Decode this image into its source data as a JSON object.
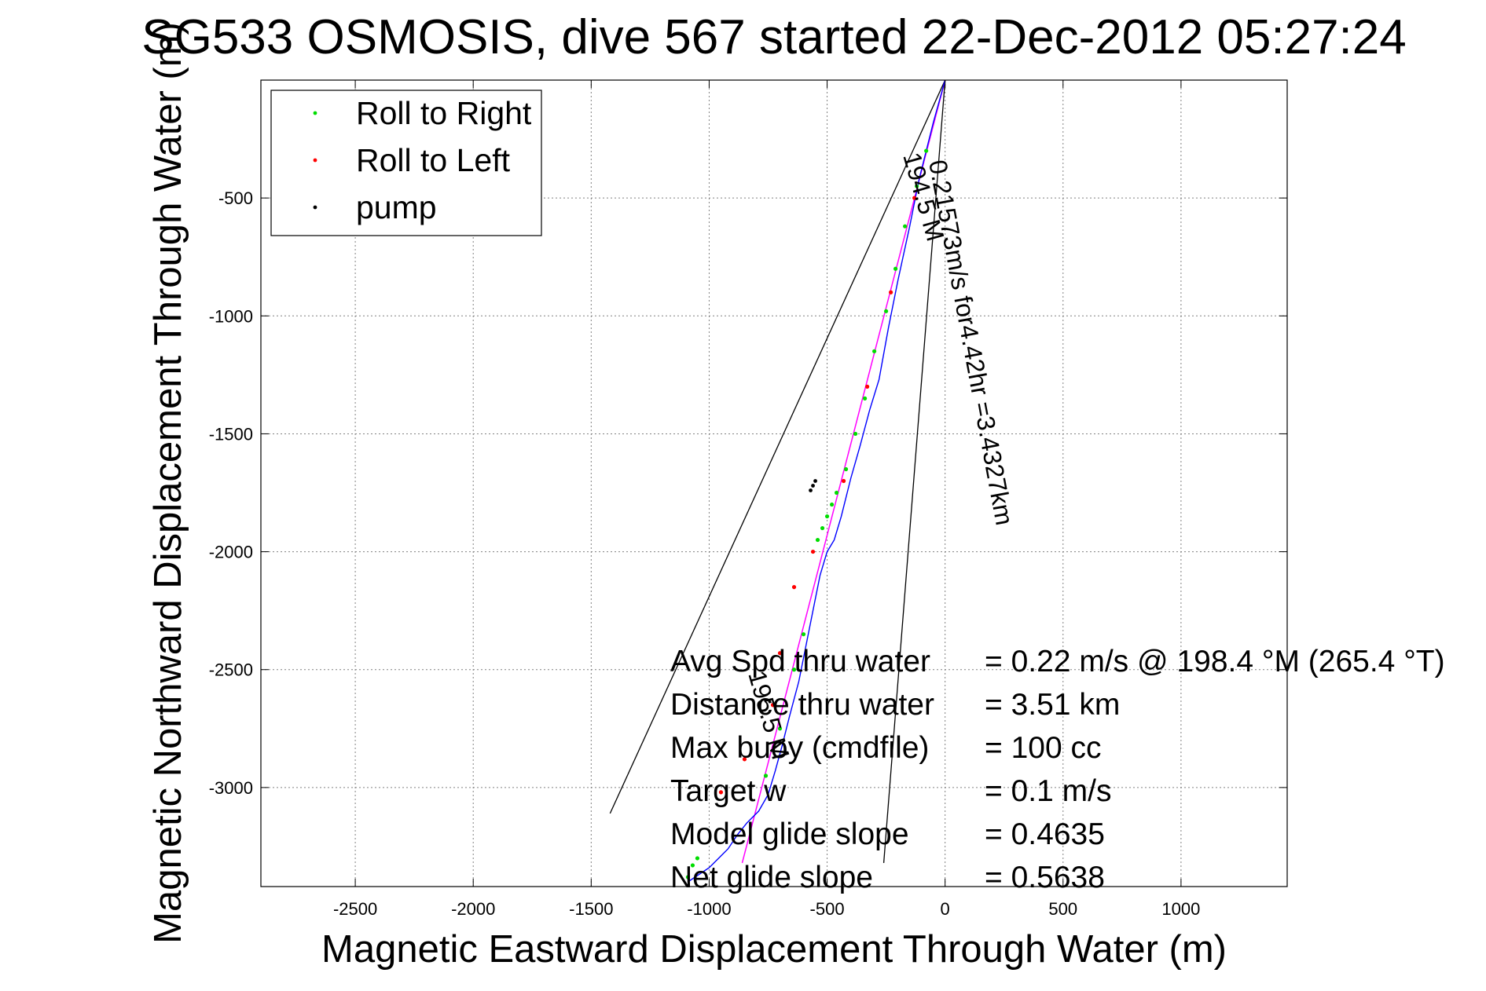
{
  "chart_data": {
    "type": "line",
    "title": "SG533 OSMOSIS, dive 567 started 22-Dec-2012 05:27:24",
    "xlabel": "Magnetic Eastward Displacement Through Water (m)",
    "ylabel": "Magnetic Northward Displacement Through Water (m)",
    "xlim": [
      -2900,
      1450
    ],
    "ylim": [
      -3420,
      0
    ],
    "xticks": [
      -2500,
      -2000,
      -1500,
      -1000,
      -500,
      0,
      500,
      1000
    ],
    "yticks": [
      -500,
      -1000,
      -1500,
      -2000,
      -2500,
      -3000
    ],
    "grid": true,
    "legend_position": "top-left",
    "legend": [
      {
        "label": "Roll to Right",
        "color": "#00dd00"
      },
      {
        "label": "Roll to Left",
        "color": "#ff0000"
      },
      {
        "label": "pump",
        "color": "#000000"
      }
    ],
    "track": {
      "color": "#0000ff",
      "x": [
        0,
        -50,
        -110,
        -150,
        -200,
        -240,
        -280,
        -320,
        -360,
        -400,
        -440,
        -470,
        -500,
        -530,
        -560,
        -590,
        -620,
        -660,
        -690,
        -720,
        -750,
        -790,
        -840,
        -880,
        -920,
        -960,
        -1000,
        -1030,
        -1060,
        -1090
      ],
      "y": [
        0,
        -180,
        -420,
        -620,
        -850,
        -1050,
        -1270,
        -1400,
        -1550,
        -1690,
        -1850,
        -1950,
        -2000,
        -2100,
        -2250,
        -2400,
        -2550,
        -2700,
        -2820,
        -2930,
        -3030,
        -3100,
        -3150,
        -3200,
        -3260,
        -3300,
        -3340,
        -3360,
        -3380,
        -3400
      ]
    },
    "roll_right": {
      "color": "#00dd00",
      "x": [
        -80,
        -120,
        -170,
        -210,
        -250,
        -300,
        -340,
        -380,
        -420,
        -460,
        -480,
        -500,
        -520,
        -540,
        -600,
        -640,
        -700,
        -760,
        -1050,
        -1070,
        -1090
      ],
      "y": [
        -300,
        -450,
        -620,
        -800,
        -980,
        -1150,
        -1350,
        -1500,
        -1650,
        -1750,
        -1800,
        -1850,
        -1900,
        -1950,
        -2350,
        -2500,
        -2750,
        -2950,
        -3300,
        -3330,
        -3380
      ]
    },
    "roll_left": {
      "color": "#ff0000",
      "x": [
        -130,
        -230,
        -330,
        -430,
        -560,
        -640,
        -700,
        -730,
        -850,
        -950
      ],
      "y": [
        -500,
        -900,
        -1300,
        -1700,
        -2000,
        -2150,
        -2430,
        -2650,
        -2880,
        -3020
      ]
    },
    "pump": {
      "color": "#000000",
      "x": [
        -550,
        -560,
        -570
      ],
      "y": [
        -1700,
        -1720,
        -1740
      ]
    },
    "mean_line": {
      "color": "#ff00ff",
      "x": [
        0,
        -860
      ],
      "y": [
        0,
        -3320
      ]
    },
    "cone_lines": [
      {
        "color": "#000000",
        "x": [
          0,
          -1420
        ],
        "y": [
          0,
          -3110
        ]
      },
      {
        "color": "#000000",
        "x": [
          0,
          -260
        ],
        "y": [
          0,
          -3320
        ]
      }
    ],
    "annotations": {
      "along_line": "0.21573m/s for4.42hr =3.4327km",
      "cone_left": "194.5 M",
      "cone_lower": "195.5 M"
    },
    "stats": [
      {
        "label": "Avg Spd thru water",
        "value": "=  0.22 m/s @ 198.4 °M (265.4 °T)"
      },
      {
        "label": "Distance thru water",
        "value": "=  3.51 km"
      },
      {
        "label": "Max buoy (cmdfile)",
        "value": "= 100 cc"
      },
      {
        "label": "Target w",
        "value": "= 0.1 m/s"
      },
      {
        "label": "Model glide slope",
        "value": "= 0.4635"
      },
      {
        "label": "Net glide slope",
        "value": "= 0.5638"
      }
    ]
  }
}
